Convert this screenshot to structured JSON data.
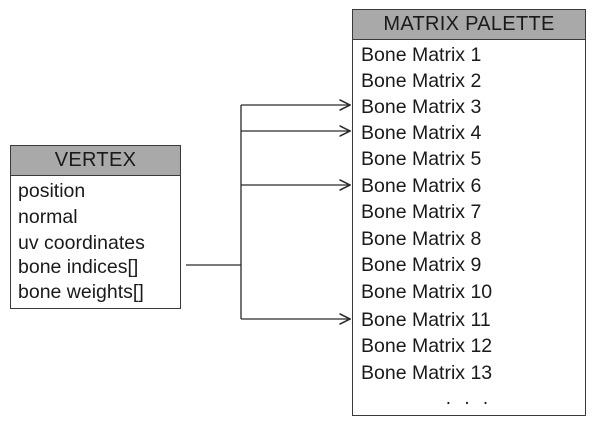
{
  "vertex": {
    "title": "VERTEX",
    "fields": [
      "position",
      "normal",
      "uv coordinates",
      "bone indices[]",
      "bone weights[]"
    ]
  },
  "palette": {
    "title": "MATRIX PALETTE",
    "items": [
      "Bone Matrix 1",
      "Bone Matrix 2",
      "Bone Matrix 3",
      "Bone Matrix 4",
      "Bone Matrix 5",
      "Bone Matrix 6",
      "Bone Matrix 7",
      "Bone Matrix 8",
      "Bone Matrix 9",
      "Bone Matrix 10",
      "Bone Matrix 11",
      "Bone Matrix 12",
      "Bone Matrix 13"
    ],
    "ellipsis": ". . ."
  },
  "connections": {
    "source_field": "bone indices[]",
    "targets": [
      "Bone Matrix 3",
      "Bone Matrix 4",
      "Bone Matrix 6",
      "Bone Matrix 11"
    ]
  },
  "colors": {
    "header_fill": "#a9a9a9",
    "border": "#3a3a3a",
    "line": "#2a2a2a"
  }
}
